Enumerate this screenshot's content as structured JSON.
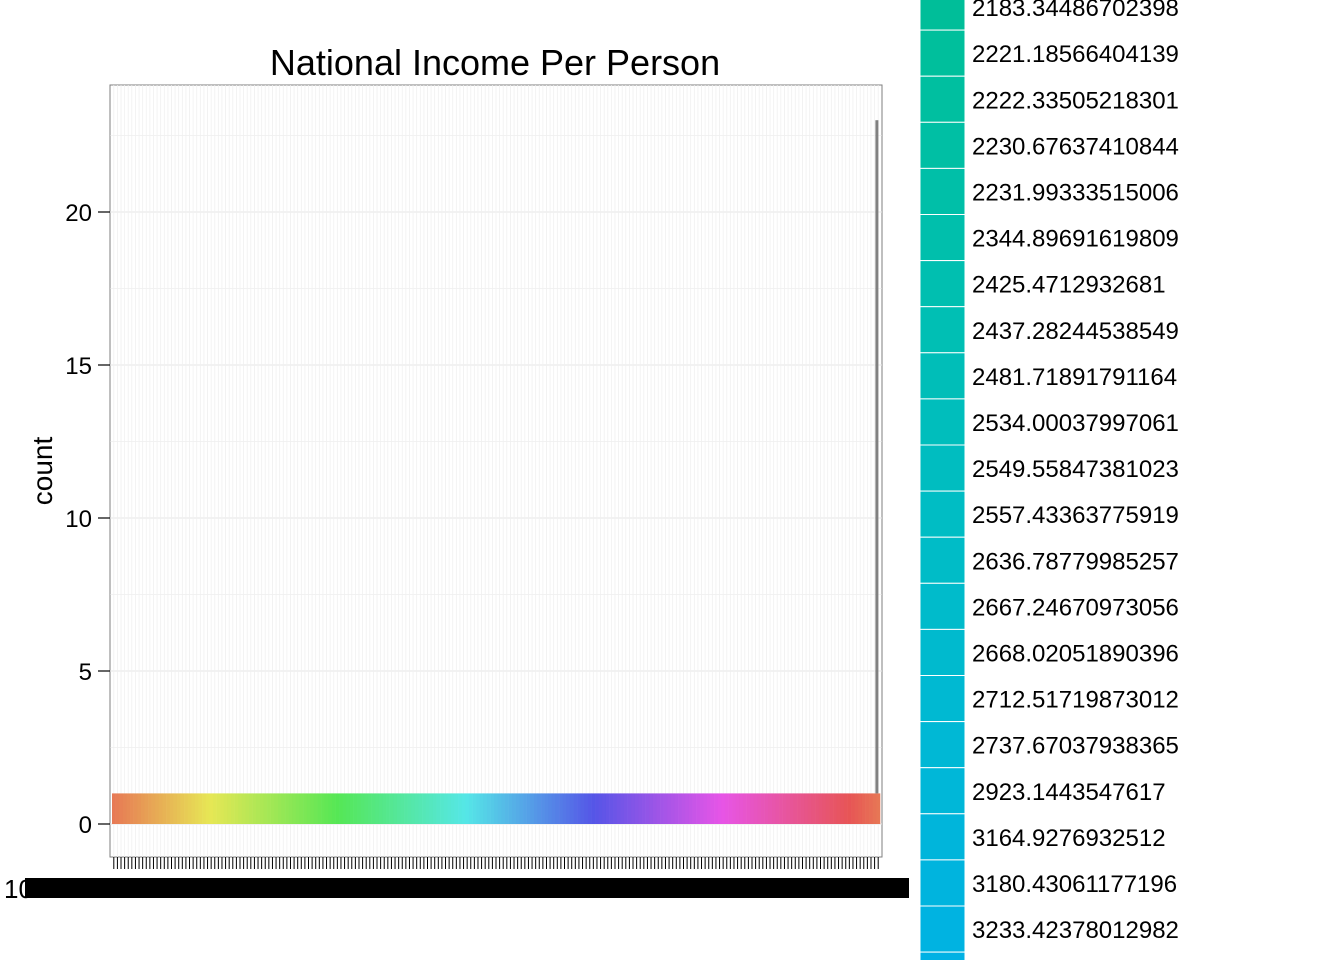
{
  "chart_data": {
    "type": "bar",
    "title": "National Income Per Person",
    "xlabel": "",
    "ylabel": "count",
    "ylim": [
      0,
      23
    ],
    "yticks": [
      0,
      5,
      10,
      15,
      20
    ],
    "grid": true,
    "n_categories": 213,
    "bar_height_typical": 1,
    "tallest_bar_value": 23,
    "x_tick_label_visible": "10",
    "legend_position": "right",
    "legend_entries": [
      {
        "label": "2183.34486702398",
        "color": "#00BE99"
      },
      {
        "label": "2221.18566404139",
        "color": "#00BF9C"
      },
      {
        "label": "2222.33505218301",
        "color": "#00BFA0"
      },
      {
        "label": "2230.67637410844",
        "color": "#00BFA4"
      },
      {
        "label": "2231.99333515006",
        "color": "#00BFA8"
      },
      {
        "label": "2344.89691619809",
        "color": "#00BFAC"
      },
      {
        "label": "2425.4712932681",
        "color": "#00BFB0"
      },
      {
        "label": "2437.28244538549",
        "color": "#00BFB4"
      },
      {
        "label": "2481.71891791164",
        "color": "#00BEB8"
      },
      {
        "label": "2534.00037997061",
        "color": "#00BEBC"
      },
      {
        "label": "2549.55847381023",
        "color": "#00BDC0"
      },
      {
        "label": "2557.43363775919",
        "color": "#00BDC4"
      },
      {
        "label": "2636.78779985257",
        "color": "#00BCC7"
      },
      {
        "label": "2667.24670973056",
        "color": "#00BBCB"
      },
      {
        "label": "2668.02051890396",
        "color": "#00BACE"
      },
      {
        "label": "2712.51719873012",
        "color": "#00B9D2"
      },
      {
        "label": "2737.67037938365",
        "color": "#00B8D5"
      },
      {
        "label": "2923.1443547617",
        "color": "#00B7D8"
      },
      {
        "label": "3164.9276932512",
        "color": "#00B5DB"
      },
      {
        "label": "3180.43061177196",
        "color": "#00B4DE"
      },
      {
        "label": "3233.42378012982",
        "color": "#00B3E1"
      }
    ]
  }
}
